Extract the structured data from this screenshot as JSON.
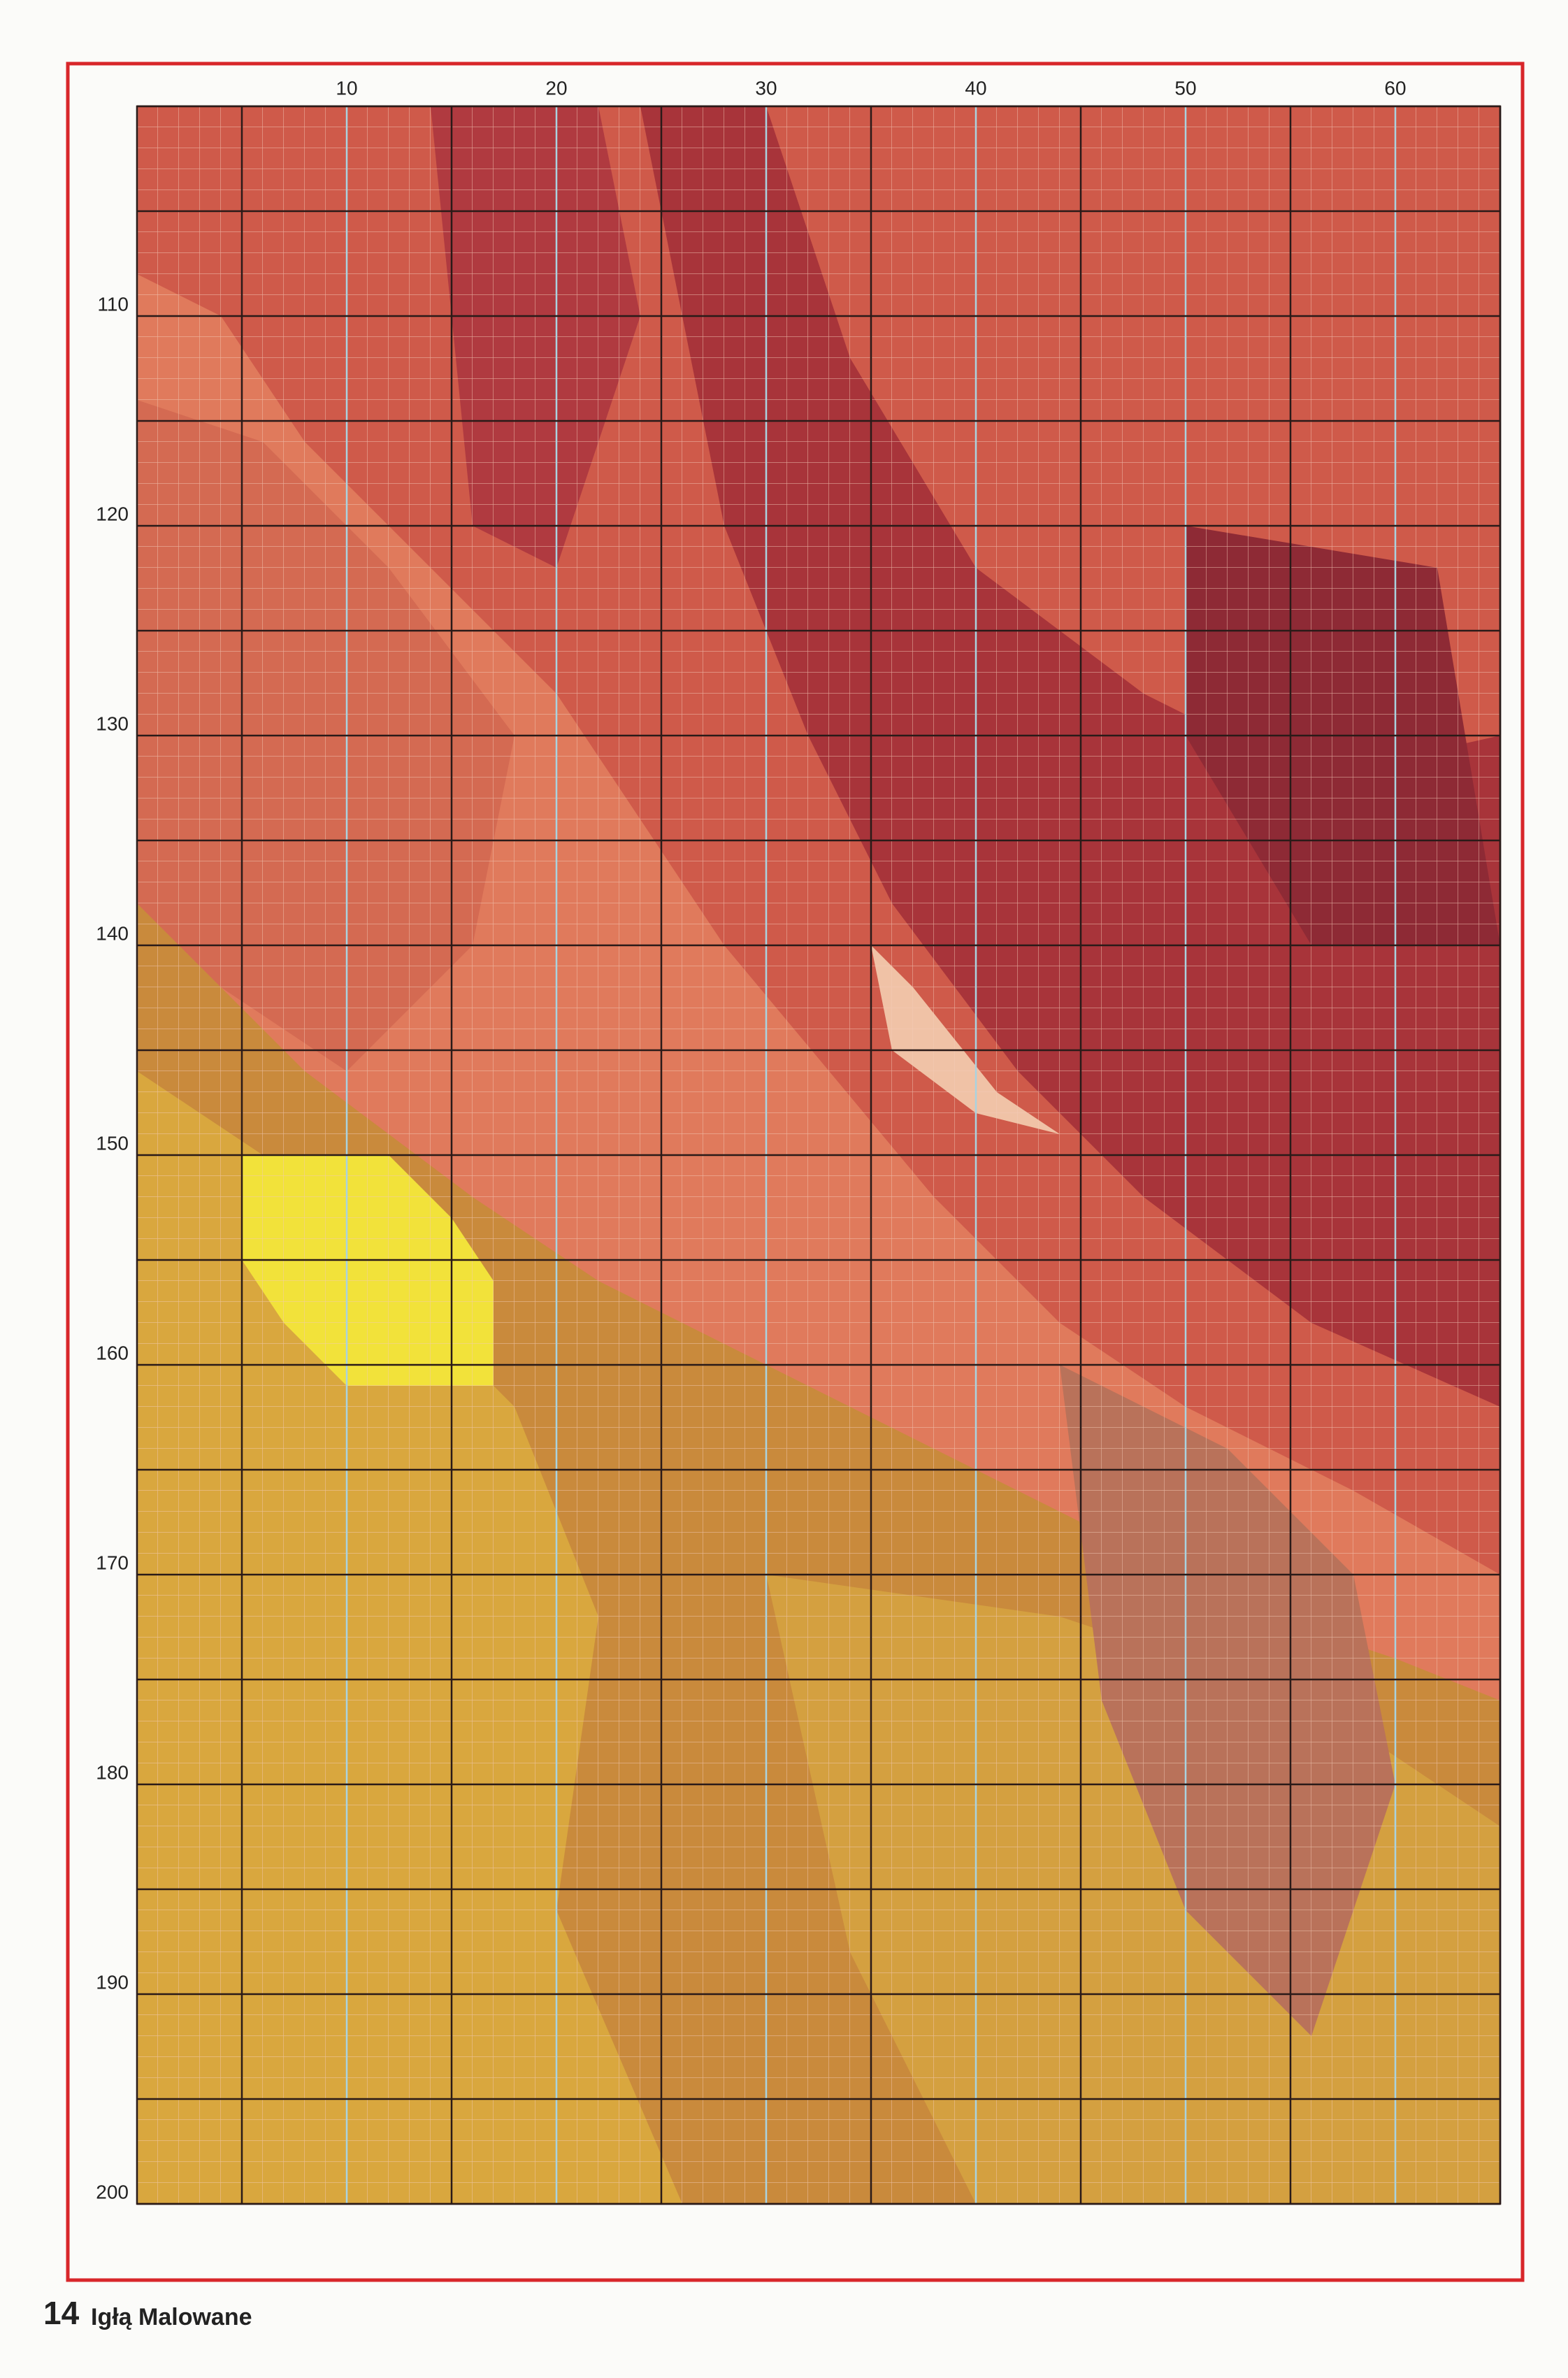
{
  "chart": {
    "column_labels": [
      10,
      20,
      30,
      40,
      50,
      60
    ],
    "row_labels": [
      110,
      120,
      130,
      140,
      150,
      160,
      170,
      180,
      190,
      200
    ]
  },
  "footer": {
    "page_number": "14",
    "magazine": "Igłą Malowane"
  }
}
